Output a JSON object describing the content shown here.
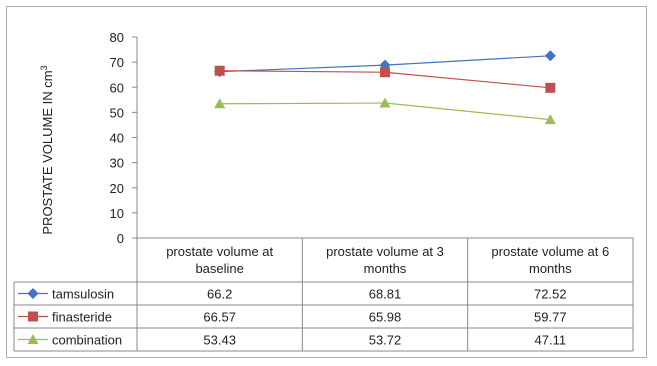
{
  "chart_data": {
    "type": "line",
    "title": "",
    "ylabel": "PROSTATE  VOLUME IN  cm",
    "ylabel_superscript": "3",
    "ylim": [
      0,
      80
    ],
    "yticks": [
      "0",
      "10",
      "20",
      "30",
      "40",
      "50",
      "60",
      "70",
      "80"
    ],
    "categories": [
      "prostate volume at baseline",
      "prostate volume at 3 months",
      "prostate volume at 6 months"
    ],
    "category_lines": [
      [
        "prostate volume at",
        "baseline"
      ],
      [
        "prostate volume at 3",
        "months"
      ],
      [
        "prostate volume at 6",
        "months"
      ]
    ],
    "legend": "data table",
    "series": [
      {
        "name": "tamsulosin",
        "marker": "diamond",
        "color": "#4472C4",
        "values": [
          66.2,
          68.81,
          72.52
        ],
        "labels": [
          "66.2",
          "68.81",
          "72.52"
        ]
      },
      {
        "name": "finasteride",
        "marker": "square",
        "color": "#C0504D",
        "values": [
          66.57,
          65.98,
          59.77
        ],
        "labels": [
          "66.57",
          "65.98",
          "59.77"
        ]
      },
      {
        "name": "combination",
        "marker": "triangle",
        "color": "#9BBB59",
        "values": [
          53.43,
          53.72,
          47.11
        ],
        "labels": [
          "53.43",
          "53.72",
          "47.11"
        ]
      }
    ]
  }
}
